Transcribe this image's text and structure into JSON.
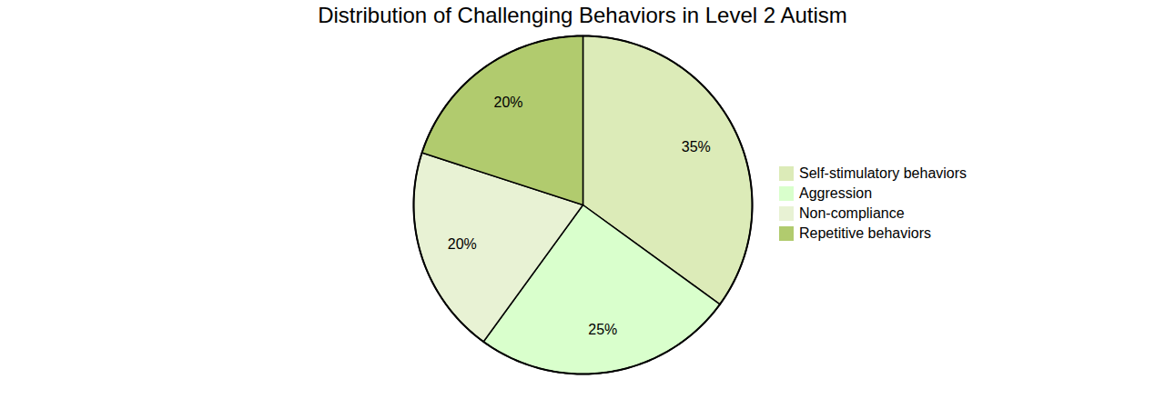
{
  "chart_data": {
    "type": "pie",
    "title": "Distribution of Challenging Behaviors in Level 2 Autism",
    "categories": [
      "Self-stimulatory behaviors",
      "Aggression",
      "Non-compliance",
      "Repetitive behaviors"
    ],
    "values": [
      35,
      25,
      20,
      20
    ],
    "value_labels": [
      "35%",
      "25%",
      "20%",
      "20%"
    ],
    "colors": [
      "#dcebb8",
      "#d9ffcc",
      "#e8f2d4",
      "#b1cb6e"
    ],
    "data_labels": true,
    "legend": "right"
  }
}
